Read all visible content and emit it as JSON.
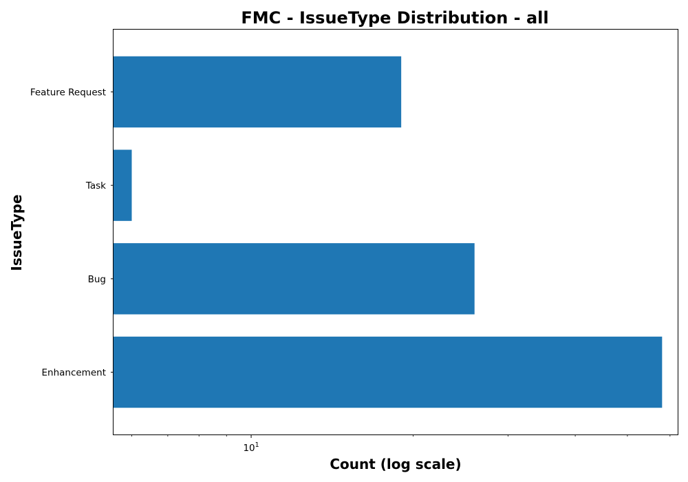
{
  "chart_data": {
    "type": "bar",
    "orientation": "horizontal",
    "title": "FMC - IssueType Distribution - all",
    "xlabel": "Count (log scale)",
    "ylabel": "IssueType",
    "x_scale": "log",
    "xlim": [
      5.55,
      62
    ],
    "x_major_ticks": [
      10
    ],
    "x_major_tick_labels": [
      {
        "base": "10",
        "exponent": "1"
      }
    ],
    "x_minor_ticks": [
      6,
      7,
      8,
      9,
      20,
      30,
      40,
      50,
      60
    ],
    "categories": [
      "Enhancement",
      "Bug",
      "Task",
      "Feature Request"
    ],
    "values": [
      58,
      26,
      6,
      19
    ],
    "bar_color": "#1f77b4",
    "grid": false,
    "legend": "none"
  }
}
